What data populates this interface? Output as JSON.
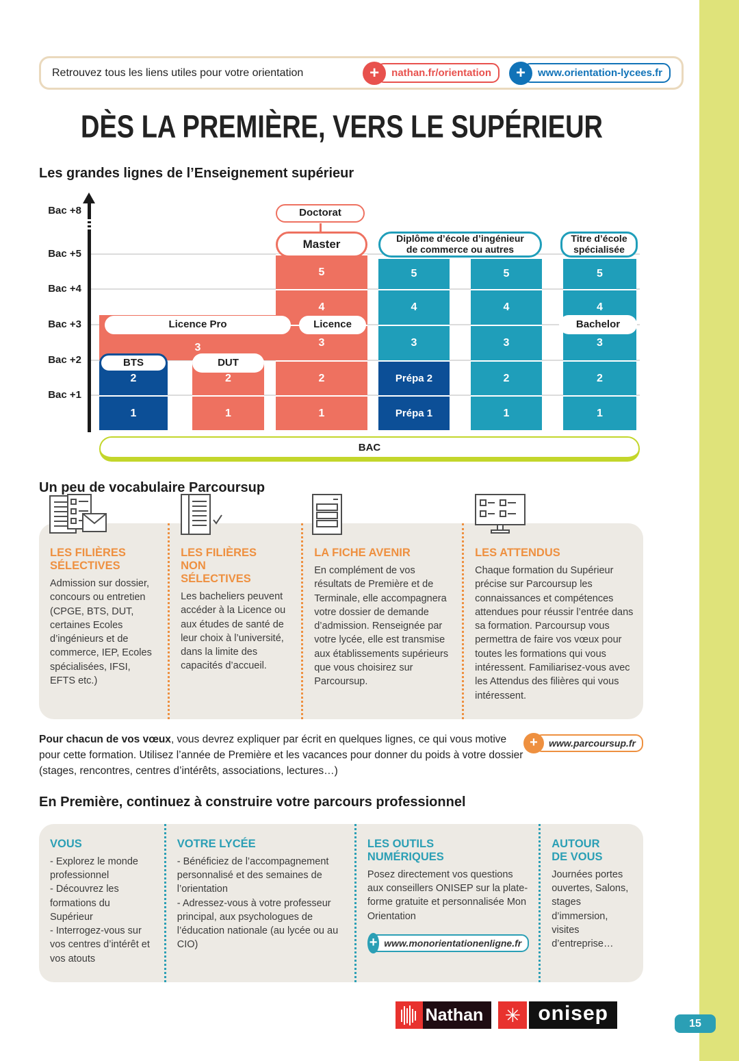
{
  "colors": {
    "salmon": "#ee7160",
    "teal": "#1f9eba",
    "blue": "#0c4f97",
    "lime": "#c3d62b",
    "strip": "#dfe37a",
    "orange": "#ee9040",
    "teal_dark": "#2b9fb5",
    "red": "#e8514d",
    "link_blue": "#1173b8",
    "panel_gray": "#edeae4",
    "logo_red": "#e8322e"
  },
  "banner": {
    "text": "Retrouvez tous les liens utiles pour votre orientation",
    "links": [
      {
        "label": "nathan.fr/orientation"
      },
      {
        "label": "www.orientation-lycees.fr"
      }
    ]
  },
  "title": "DÈS LA PREMIÈRE, VERS LE SUPÉRIEUR",
  "diagram": {
    "heading": "Les grandes lignes de l’Enseignement supérieur",
    "axis": [
      "Bac +8",
      "Bac +5",
      "Bac +4",
      "Bac +3",
      "Bac +2",
      "Bac +1"
    ],
    "bac": "BAC",
    "tops": {
      "doctorat": "Doctorat",
      "master": "Master"
    },
    "headers": {
      "ingenieur": "Diplôme d’école d’ingénieur\nde commerce ou autres",
      "titre": "Titre d’école\nspécialisée"
    },
    "band": {
      "label": "Licence Pro",
      "value": "3"
    },
    "columns": {
      "bts": {
        "pill": "BTS",
        "cells": [
          "2",
          "1"
        ]
      },
      "dut": {
        "pill": "DUT",
        "cells": [
          "2",
          "1"
        ]
      },
      "licence": {
        "pill": "Licence",
        "cells": [
          "5",
          "4",
          "3",
          "2",
          "1"
        ]
      },
      "prepa": {
        "cells": [
          "5",
          "4",
          "3",
          "Prépa 2",
          "Prépa 1"
        ]
      },
      "ecole2": {
        "cells": [
          "5",
          "4",
          "3",
          "2",
          "1"
        ]
      },
      "titre": {
        "pill": "Bachelor",
        "cells": [
          "5",
          "4",
          "3",
          "2",
          "1"
        ]
      }
    }
  },
  "vocab": {
    "heading": "Un peu de vocabulaire Parcoursup",
    "columns": [
      {
        "icon": "checklist-envelope-icon",
        "title": "LES FILIÈRES\nSÉLECTIVES",
        "body": "Admission sur dossier, concours ou entretien (CPGE, BTS, DUT, certaines Ecoles d’ingénieurs et de commerce, IEP, Ecoles spécialisées, IFSI, EFTS etc.)"
      },
      {
        "icon": "document-check-icon",
        "title": "LES FILIÈRES\nNON\nSÉLECTIVES",
        "body": "Les bacheliers peuvent accéder à la Licence ou aux études de santé de leur choix à l’université, dans la limite des capacités d’accueil."
      },
      {
        "icon": "form-stack-icon",
        "title": "LA FICHE AVENIR",
        "body": "En complément de vos résultats de Première et de Terminale, elle accompagnera votre dossier de demande d’admission. Renseignée par votre lycée, elle est transmise aux établissements supérieurs que vous choisirez sur Parcoursup."
      },
      {
        "icon": "monitor-checklist-icon",
        "title": "LES ATTENDUS",
        "body": "Chaque formation du Supérieur précise sur Parcoursup les connaissances et compétences attendues pour réussir l’entrée dans sa formation. Parcoursup vous permettra de faire vos vœux pour toutes les formations qui vous intéressent. Familiarisez-vous avec les Attendus des filières qui vous intéressent."
      }
    ]
  },
  "voeux": {
    "lead": "Pour chacun de vos vœux",
    "rest": ", vous devrez expliquer par écrit en quelques lignes, ce qui vous motive pour cette formation. Utilisez l’année de Première et les vacances pour donner du poids à votre dossier (stages, rencontres, centres d’intérêts, associations, lectures…)",
    "link": "www.parcoursup.fr"
  },
  "premiere": {
    "heading": "En Première, continuez à construire votre parcours professionnel",
    "columns": [
      {
        "title": "VOUS",
        "body": "- Explorez le monde professionnel\n- Découvrez les formations du Supérieur\n- Interrogez-vous sur vos centres d’intérêt et vos atouts"
      },
      {
        "title": "VOTRE LYCÉE",
        "body": "- Bénéficiez de l’accompagnement personnalisé et des semaines de l’orientation\n- Adressez-vous à votre professeur principal, aux psychologues de l’éducation nationale (au lycée ou au CIO)"
      },
      {
        "title": "LES OUTILS\nNUMÉRIQUES",
        "body": "Posez directement vos questions aux conseillers ONISEP sur la plate-forme gratuite et personnalisée Mon Orientation",
        "link": "www.monorientationenligne.fr"
      },
      {
        "title": "AUTOUR\nDE VOUS",
        "body": "Journées portes ouvertes, Salons, stages d’immersion, visites d’entreprise…"
      }
    ]
  },
  "logos": {
    "nathan": "Nathan",
    "onisep": "onisep"
  },
  "page_number": "15"
}
